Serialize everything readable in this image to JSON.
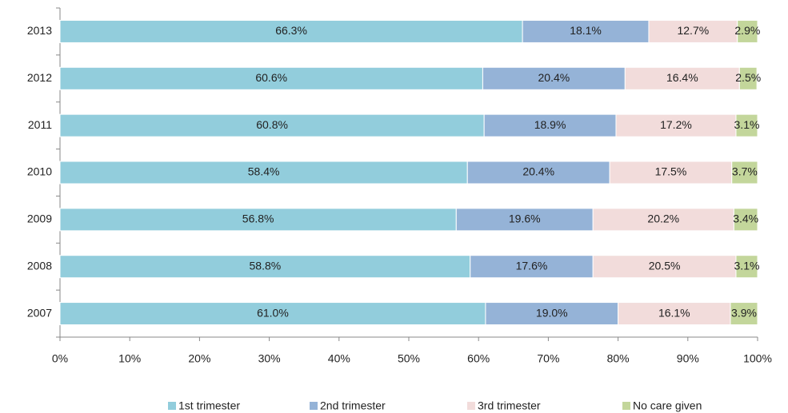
{
  "chart_data": {
    "type": "stacked-bar-horizontal",
    "categories": [
      "2013",
      "2012",
      "2011",
      "2010",
      "2009",
      "2008",
      "2007"
    ],
    "series": [
      {
        "name": "1st trimester",
        "color": "#92cddc",
        "values": [
          66.3,
          60.6,
          60.8,
          58.4,
          56.8,
          58.8,
          61.0
        ],
        "value_labels": [
          "66.3%",
          "60.6%",
          "60.8%",
          "58.4%",
          "56.8%",
          "58.8%",
          "61.0%"
        ]
      },
      {
        "name": "2nd trimester",
        "color": "#95b3d7",
        "values": [
          18.1,
          20.4,
          18.9,
          20.4,
          19.6,
          17.6,
          19.0
        ],
        "value_labels": [
          "18.1%",
          "20.4%",
          "18.9%",
          "20.4%",
          "19.6%",
          "17.6%",
          "19.0%"
        ]
      },
      {
        "name": "3rd trimester",
        "color": "#f2dcdb",
        "values": [
          12.7,
          16.4,
          17.2,
          17.5,
          20.2,
          20.5,
          16.1
        ],
        "value_labels": [
          "12.7%",
          "16.4%",
          "17.2%",
          "17.5%",
          "20.2%",
          "20.5%",
          "16.1%"
        ]
      },
      {
        "name": "No care given",
        "color": "#c3d69b",
        "values": [
          2.9,
          2.5,
          3.1,
          3.7,
          3.4,
          3.1,
          3.9
        ],
        "value_labels": [
          "2.9%",
          "2.5%",
          "3.1%",
          "3.7%",
          "3.4%",
          "3.1%",
          "3.9%"
        ]
      }
    ],
    "xlim": [
      0,
      100
    ],
    "xticks": [
      {
        "value": 0,
        "label": "0%"
      },
      {
        "value": 10,
        "label": "10%"
      },
      {
        "value": 20,
        "label": "20%"
      },
      {
        "value": 30,
        "label": "30%"
      },
      {
        "value": 40,
        "label": "40%"
      },
      {
        "value": 50,
        "label": "50%"
      },
      {
        "value": 60,
        "label": "60%"
      },
      {
        "value": 70,
        "label": "70%"
      },
      {
        "value": 80,
        "label": "80%"
      },
      {
        "value": 90,
        "label": "90%"
      },
      {
        "value": 100,
        "label": "100%"
      }
    ],
    "legend": "bottom"
  }
}
